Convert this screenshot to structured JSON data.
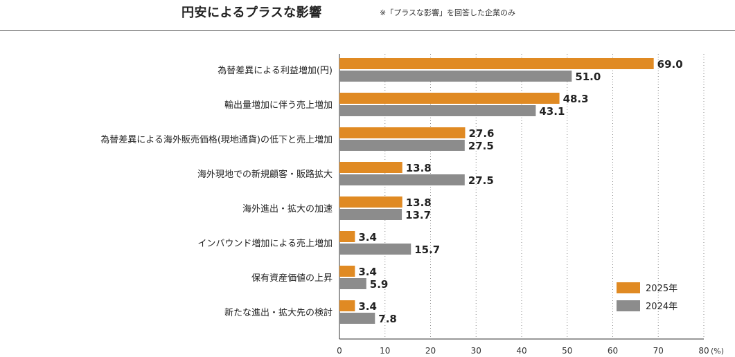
{
  "header": {
    "title": "円安によるプラスな影響",
    "note": "※「プラスな影響」を回答した企業のみ"
  },
  "chart_data": {
    "type": "bar",
    "orientation": "horizontal",
    "title": "円安によるプラスな影響",
    "categories": [
      "為替差異による利益増加(円)",
      "輸出量増加に伴う売上増加",
      "為替差異による海外販売価格(現地通貨)の低下と売上増加",
      "海外現地での新規顧客・販路拡大",
      "海外進出・拡大の加速",
      "インバウンド増加による売上増加",
      "保有資産価値の上昇",
      "新たな進出・拡大先の検討"
    ],
    "series": [
      {
        "name": "2025年",
        "color": "#e08a23",
        "values": [
          69.0,
          48.3,
          27.6,
          13.8,
          13.8,
          3.4,
          3.4,
          3.4
        ],
        "labels": [
          "69.0",
          "48.3",
          "27.6",
          "13.8",
          "13.8",
          "3.4",
          "3.4",
          "3.4"
        ]
      },
      {
        "name": "2024年",
        "color": "#8c8c8c",
        "values": [
          51.0,
          43.1,
          27.5,
          27.5,
          13.7,
          15.7,
          5.9,
          7.8
        ],
        "labels": [
          "51.0",
          "43.1",
          "27.5",
          "27.5",
          "13.7",
          "15.7",
          "5.9",
          "7.8"
        ]
      }
    ],
    "xlim": [
      0,
      80
    ],
    "xticks": [
      "0",
      "10",
      "20",
      "30",
      "40",
      "50",
      "60",
      "70",
      "80"
    ],
    "x_unit": "(%)",
    "grid": "vertical dotted",
    "legend": "bottom-right"
  }
}
